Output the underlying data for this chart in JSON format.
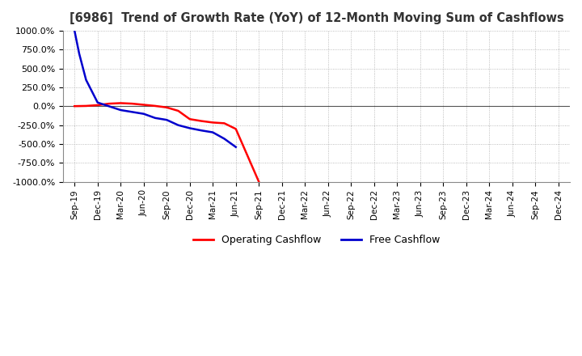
{
  "title": "[6986]  Trend of Growth Rate (YoY) of 12-Month Moving Sum of Cashflows",
  "title_fontsize": 10.5,
  "background_color": "#ffffff",
  "grid_color": "#aaaaaa",
  "x_labels": [
    "Sep-19",
    "Dec-19",
    "Mar-20",
    "Jun-20",
    "Sep-20",
    "Dec-20",
    "Mar-21",
    "Jun-21",
    "Sep-21",
    "Dec-21",
    "Mar-22",
    "Jun-22",
    "Sep-22",
    "Dec-22",
    "Mar-23",
    "Jun-23",
    "Sep-23",
    "Dec-23",
    "Mar-24",
    "Jun-24",
    "Sep-24",
    "Dec-24"
  ],
  "ylim": [
    -1000,
    1000
  ],
  "yticks": [
    -1000,
    -750,
    -500,
    -250,
    0,
    250,
    500,
    750,
    1000
  ],
  "operating_cashflow_x": [
    0,
    0.5,
    1.0,
    1.5,
    2.0,
    2.5,
    3.0,
    3.5,
    4.0,
    4.5,
    5.0,
    5.5,
    6.0,
    6.5,
    7.0,
    7.5,
    8.0
  ],
  "operating_cashflow_y": [
    2,
    5,
    15,
    35,
    42,
    35,
    20,
    5,
    -15,
    -60,
    -170,
    -195,
    -215,
    -225,
    -300,
    -650,
    -1000
  ],
  "free_cashflow_x": [
    0,
    0.2,
    0.5,
    1.0,
    2.0,
    3.0,
    3.5,
    4.0,
    4.5,
    5.0,
    5.5,
    6.0,
    6.5,
    7.0
  ],
  "free_cashflow_y": [
    1000,
    700,
    350,
    50,
    -50,
    -100,
    -155,
    -180,
    -250,
    -290,
    -320,
    -345,
    -430,
    -540
  ],
  "operating_color": "#ff0000",
  "free_color": "#0000cd",
  "legend_loc": "lower center"
}
